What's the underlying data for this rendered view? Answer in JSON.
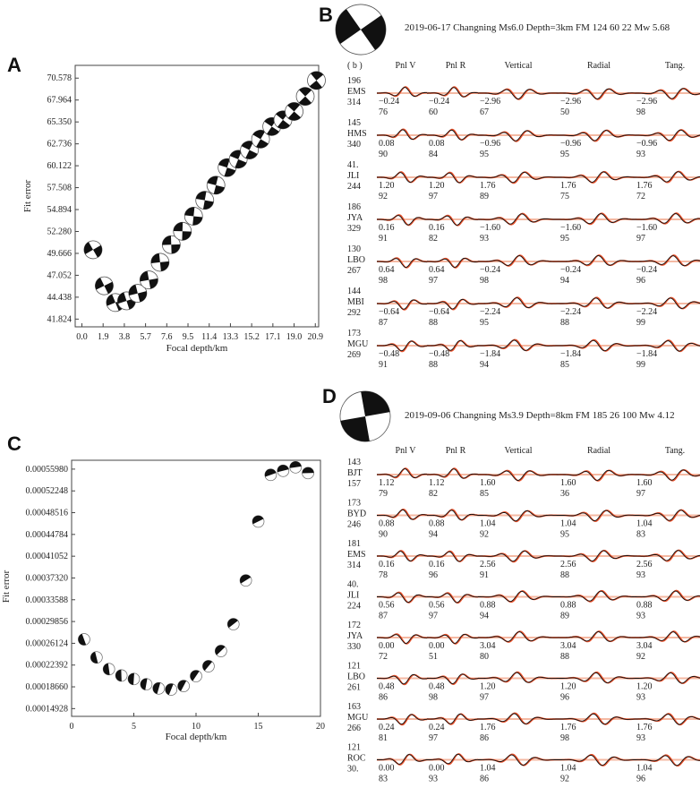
{
  "chart_data": [
    {
      "panel": "A",
      "type": "scatter",
      "title": "",
      "xlabel": "Focal depth/km",
      "ylabel": "Fit error",
      "x_ticks": [
        "0.0",
        "1.9",
        "3.8",
        "5.7",
        "7.6",
        "9.5",
        "11.4",
        "13.3",
        "15.2",
        "17.1",
        "19.0",
        "20.9"
      ],
      "y_ticks": [
        "41.824",
        "44.438",
        "47.052",
        "49.666",
        "52.280",
        "54.894",
        "57.508",
        "60.122",
        "62.736",
        "65.350",
        "67.964",
        "70.578"
      ],
      "xlim": [
        -0.6,
        21.2
      ],
      "ylim": [
        40.9,
        72.1
      ],
      "points": [
        {
          "x": 1.0,
          "y": 50.1
        },
        {
          "x": 2.0,
          "y": 45.8
        },
        {
          "x": 3.0,
          "y": 43.8
        },
        {
          "x": 4.0,
          "y": 44.0
        },
        {
          "x": 5.0,
          "y": 44.9
        },
        {
          "x": 6.0,
          "y": 46.5
        },
        {
          "x": 7.0,
          "y": 48.6
        },
        {
          "x": 8.0,
          "y": 50.7
        },
        {
          "x": 9.0,
          "y": 52.3
        },
        {
          "x": 10.0,
          "y": 54.1
        },
        {
          "x": 11.0,
          "y": 56.0
        },
        {
          "x": 12.0,
          "y": 57.8
        },
        {
          "x": 13.0,
          "y": 59.9
        },
        {
          "x": 14.0,
          "y": 60.9
        },
        {
          "x": 15.0,
          "y": 62.0
        },
        {
          "x": 16.0,
          "y": 63.3
        },
        {
          "x": 17.0,
          "y": 64.8
        },
        {
          "x": 18.0,
          "y": 65.6
        },
        {
          "x": 19.0,
          "y": 66.6
        },
        {
          "x": 20.0,
          "y": 68.4
        },
        {
          "x": 21.0,
          "y": 70.3
        }
      ]
    },
    {
      "panel": "C",
      "type": "scatter",
      "title": "",
      "xlabel": "Focal depth/km",
      "ylabel": "Fit error",
      "x_ticks": [
        "0",
        "5",
        "10",
        "15",
        "20"
      ],
      "y_ticks": [
        "0.00014928",
        "0.00018660",
        "0.00022392",
        "0.00026124",
        "0.00029856",
        "0.00033588",
        "0.00037320",
        "0.00041052",
        "0.00044784",
        "0.00048516",
        "0.00052248",
        "0.00055980"
      ],
      "xlim": [
        0,
        20
      ],
      "ylim": [
        0.000136,
        0.000575
      ],
      "points": [
        {
          "x": 1,
          "y": 0.000268
        },
        {
          "x": 2,
          "y": 0.000237
        },
        {
          "x": 3,
          "y": 0.000217
        },
        {
          "x": 4,
          "y": 0.000206
        },
        {
          "x": 5,
          "y": 0.0002
        },
        {
          "x": 6,
          "y": 0.000191
        },
        {
          "x": 7,
          "y": 0.000184
        },
        {
          "x": 8,
          "y": 0.000182
        },
        {
          "x": 9,
          "y": 0.000188
        },
        {
          "x": 10,
          "y": 0.000205
        },
        {
          "x": 11,
          "y": 0.000222
        },
        {
          "x": 12,
          "y": 0.000248
        },
        {
          "x": 13,
          "y": 0.000294
        },
        {
          "x": 14,
          "y": 0.000369
        },
        {
          "x": 15,
          "y": 0.00047
        },
        {
          "x": 16,
          "y": 0.00055
        },
        {
          "x": 17,
          "y": 0.000557
        },
        {
          "x": 18,
          "y": 0.000563
        },
        {
          "x": 19,
          "y": 0.000553
        }
      ]
    },
    {
      "panel": "B",
      "type": "waveform-fit",
      "header": "2019-06-17 Changning Ms6.0  Depth=3km   FM 124 60 22    Mw 5.68",
      "sub_label": "( b )",
      "columns": [
        "Pnl V",
        "Pnl R",
        "Vertical",
        "Radial",
        "Tang."
      ],
      "stations": [
        {
          "az": "196",
          "code": "EMS",
          "dist": "314",
          "shifts": [
            "−0.24",
            "−0.24",
            "−2.96",
            "−2.96",
            "−2.96"
          ],
          "cc": [
            "76",
            "60",
            "67",
            "50",
            "98"
          ]
        },
        {
          "az": "145",
          "code": "HMS",
          "dist": "340",
          "shifts": [
            "0.08",
            "0.08",
            "−0.96",
            "−0.96",
            "−0.96"
          ],
          "cc": [
            "90",
            "84",
            "95",
            "95",
            "93"
          ]
        },
        {
          "az": "41.",
          "code": "JLI",
          "dist": "244",
          "shifts": [
            "1.20",
            "1.20",
            "1.76",
            "1.76",
            "1.76"
          ],
          "cc": [
            "92",
            "97",
            "89",
            "75",
            "72"
          ]
        },
        {
          "az": "186",
          "code": "JYA",
          "dist": "329",
          "shifts": [
            "0.16",
            "0.16",
            "−1.60",
            "−1.60",
            "−1.60"
          ],
          "cc": [
            "91",
            "82",
            "93",
            "95",
            "97"
          ]
        },
        {
          "az": "130",
          "code": "LBO",
          "dist": "267",
          "shifts": [
            "0.64",
            "0.64",
            "−0.24",
            "−0.24",
            "−0.24"
          ],
          "cc": [
            "98",
            "97",
            "98",
            "94",
            "96"
          ]
        },
        {
          "az": "144",
          "code": "MBI",
          "dist": "292",
          "shifts": [
            "−0.64",
            "−0.64",
            "−2.24",
            "−2.24",
            "−2.24"
          ],
          "cc": [
            "87",
            "88",
            "95",
            "88",
            "99"
          ]
        },
        {
          "az": "173",
          "code": "MGU",
          "dist": "269",
          "shifts": [
            "−0.48",
            "−0.48",
            "−1.84",
            "−1.84",
            "−1.84"
          ],
          "cc": [
            "91",
            "88",
            "94",
            "85",
            "99"
          ]
        }
      ]
    },
    {
      "panel": "D",
      "type": "waveform-fit",
      "header": "2019-09-06 Changning Ms3.9  Depth=8km   FM 185 26 100    Mw 4.12",
      "columns": [
        "Pnl V",
        "Pnl R",
        "Vertical",
        "Radial",
        "Tang."
      ],
      "stations": [
        {
          "az": "143",
          "code": "BJT",
          "dist": "157",
          "shifts": [
            "1.12",
            "1.12",
            "1.60",
            "1.60",
            "1.60"
          ],
          "cc": [
            "79",
            "82",
            "85",
            "36",
            "97"
          ]
        },
        {
          "az": "173",
          "code": "BYD",
          "dist": "246",
          "shifts": [
            "0.88",
            "0.88",
            "1.04",
            "1.04",
            "1.04"
          ],
          "cc": [
            "90",
            "94",
            "92",
            "95",
            "83"
          ]
        },
        {
          "az": "181",
          "code": "EMS",
          "dist": "314",
          "shifts": [
            "0.16",
            "0.16",
            "2.56",
            "2.56",
            "2.56"
          ],
          "cc": [
            "78",
            "96",
            "91",
            "88",
            "93"
          ]
        },
        {
          "az": "40.",
          "code": "JLI",
          "dist": "224",
          "shifts": [
            "0.56",
            "0.56",
            "0.88",
            "0.88",
            "0.88"
          ],
          "cc": [
            "87",
            "97",
            "94",
            "89",
            "93"
          ]
        },
        {
          "az": "172",
          "code": "JYA",
          "dist": "330",
          "shifts": [
            "0.00",
            "0.00",
            "3.04",
            "3.04",
            "3.04"
          ],
          "cc": [
            "72",
            "51",
            "80",
            "88",
            "92"
          ]
        },
        {
          "az": "121",
          "code": "LBO",
          "dist": "261",
          "shifts": [
            "0.48",
            "0.48",
            "1.20",
            "1.20",
            "1.20"
          ],
          "cc": [
            "86",
            "98",
            "97",
            "96",
            "93"
          ]
        },
        {
          "az": "163",
          "code": "MGU",
          "dist": "266",
          "shifts": [
            "0.24",
            "0.24",
            "1.76",
            "1.76",
            "1.76"
          ],
          "cc": [
            "81",
            "97",
            "86",
            "98",
            "93"
          ]
        },
        {
          "az": "121",
          "code": "ROC",
          "dist": "30.",
          "shifts": [
            "0.00",
            "0.00",
            "1.04",
            "1.04",
            "1.04"
          ],
          "cc": [
            "83",
            "93",
            "86",
            "92",
            "96"
          ]
        }
      ]
    }
  ],
  "panels": {
    "A": "A",
    "B": "B",
    "C": "C",
    "D": "D"
  },
  "colors": {
    "observed": "#111111",
    "synthetic": "#e8512b",
    "synthetic_light": "#f4b9a3",
    "beachball": "#111111"
  }
}
